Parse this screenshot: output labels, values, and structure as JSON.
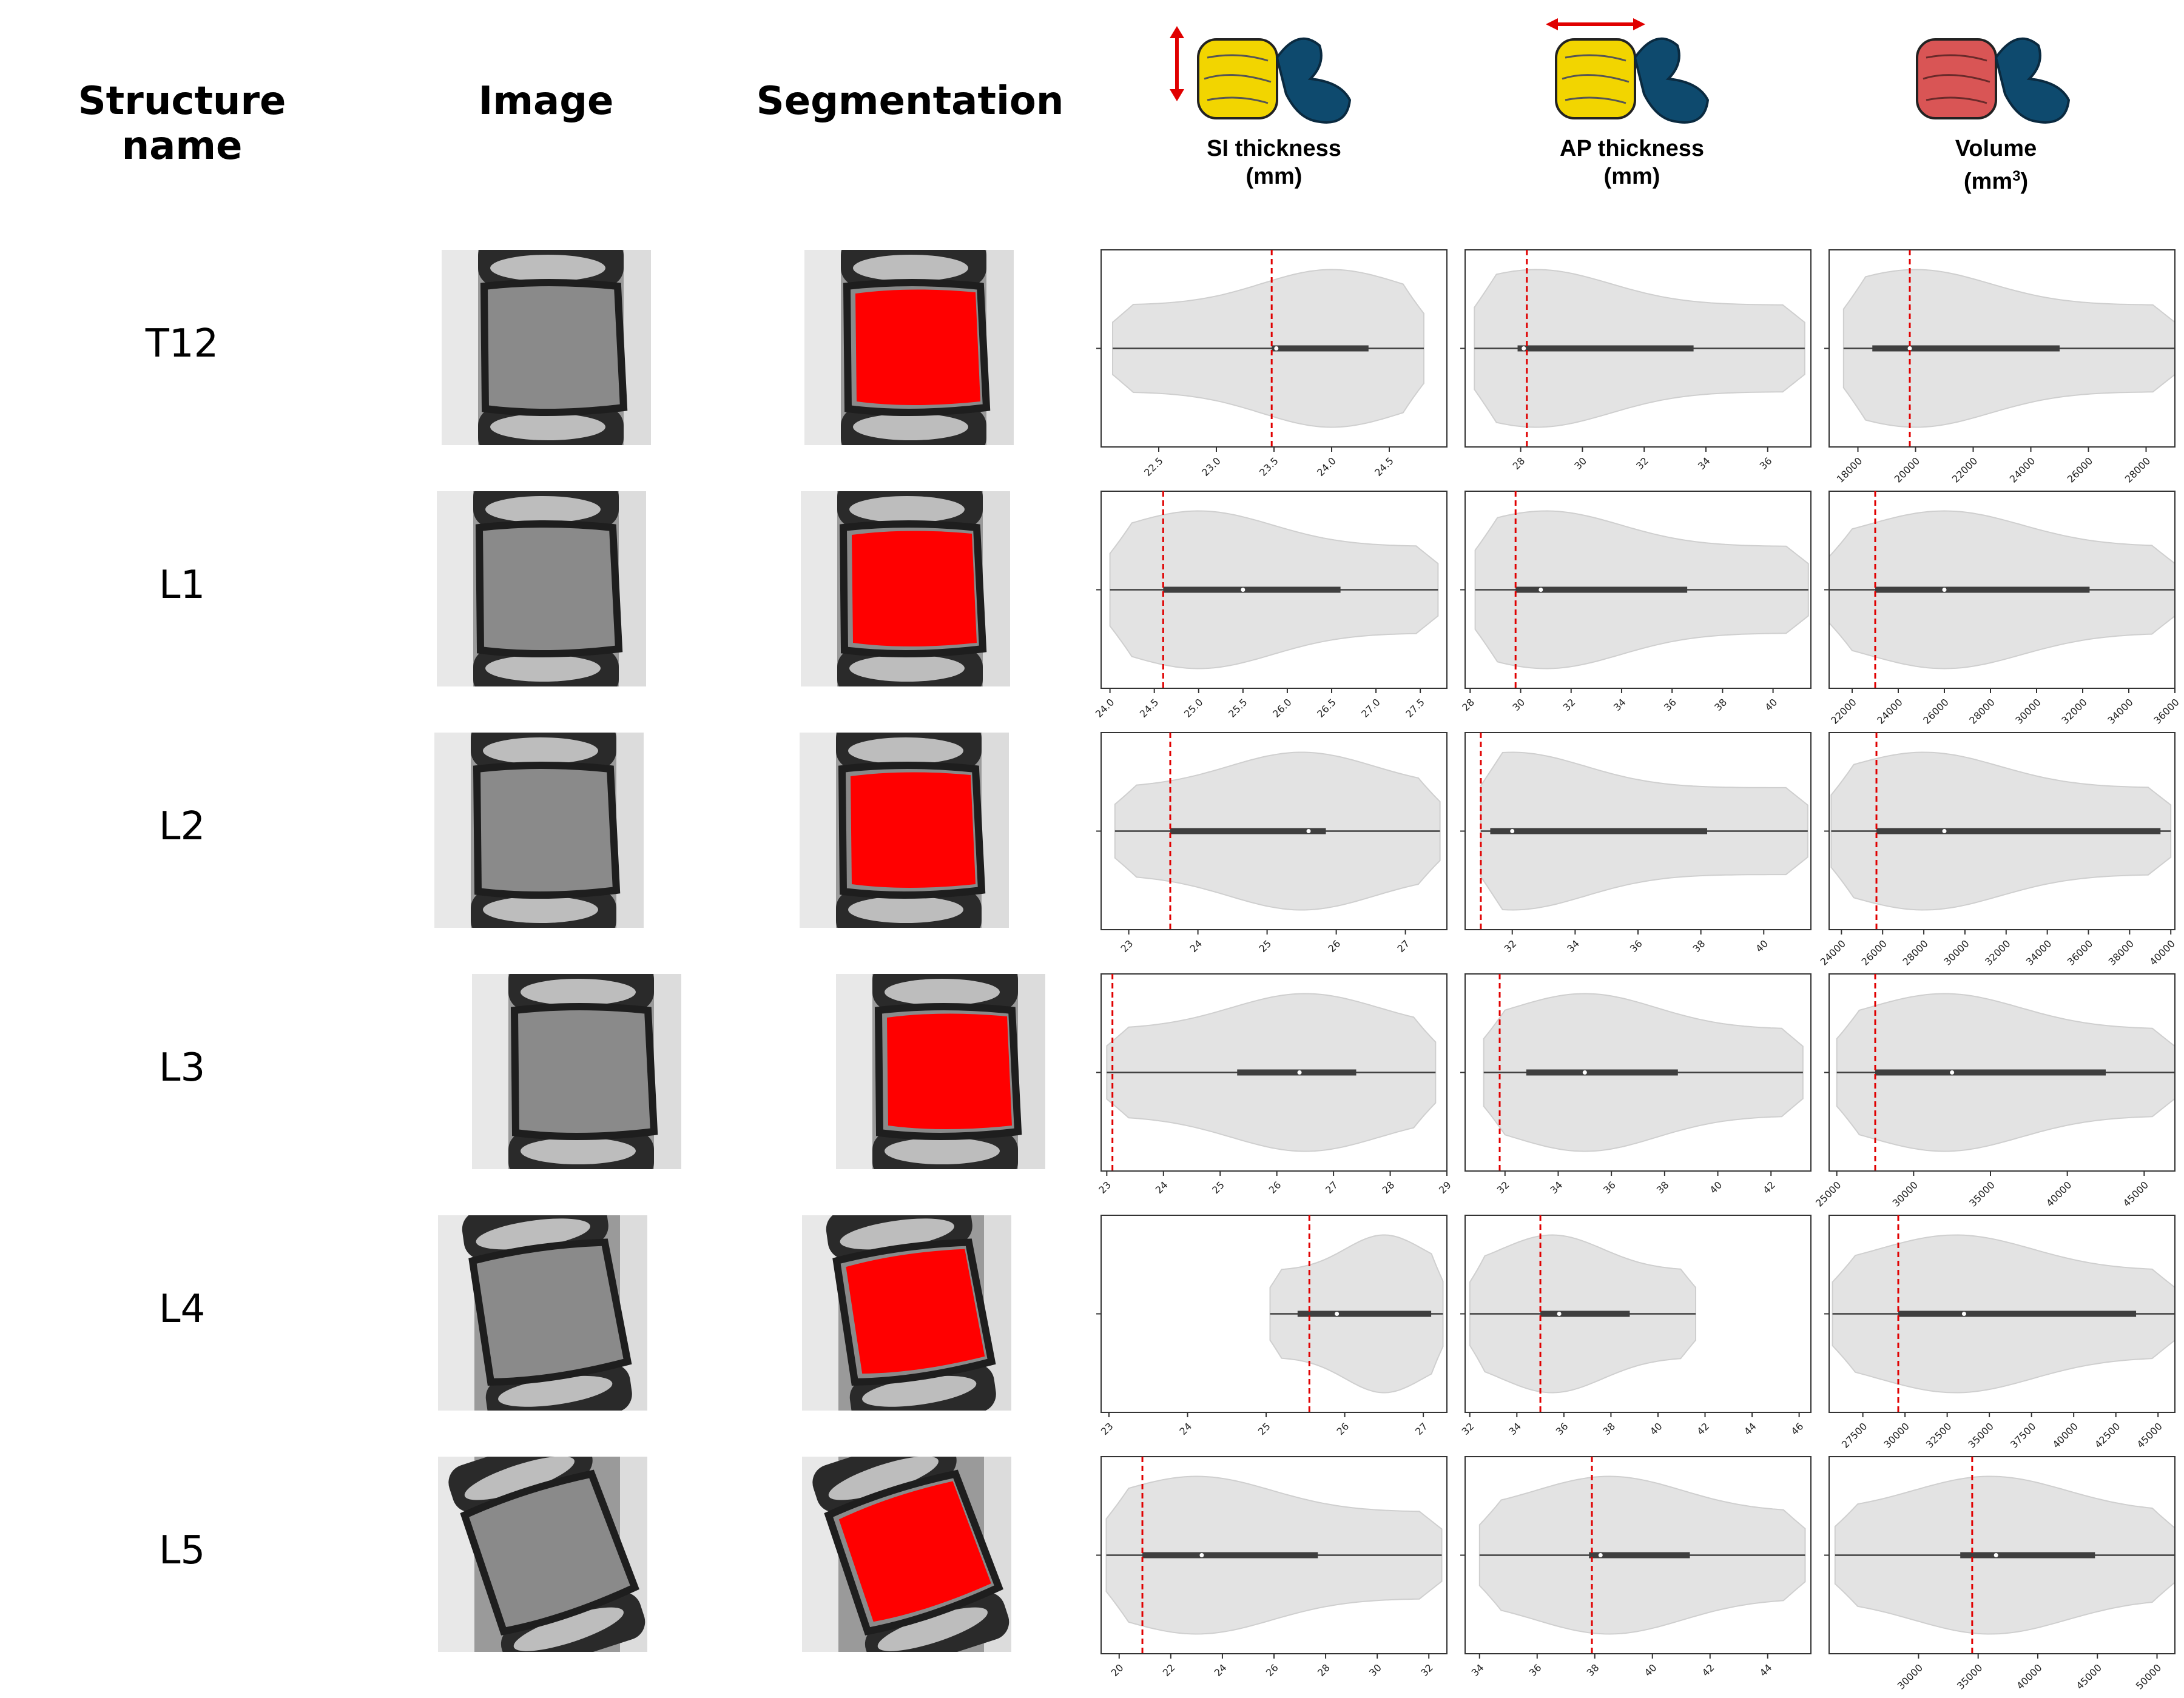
{
  "headers": {
    "structure": "Structure name",
    "image": "Image",
    "segmentation": "Segmentation",
    "metrics": [
      {
        "line1": "SI thickness",
        "line2": "(mm)"
      },
      {
        "line1": "AP thickness",
        "line2": "(mm)"
      },
      {
        "line1": "Volume",
        "line2": "(mm",
        "sup": "3",
        "close": ")"
      }
    ]
  },
  "colors": {
    "violin_fill": "#e3e3e3",
    "violin_edge": "#cfcfcf",
    "box": "#3f3f3f",
    "marker": "#e00000",
    "segmentation": "#ff0000",
    "vertebra_yellow": "#f2d500",
    "vertebra_red": "#d95555",
    "disc_blue": "#0e4a6e"
  },
  "rows": [
    {
      "name": "T12"
    },
    {
      "name": "L1"
    },
    {
      "name": "L2"
    },
    {
      "name": "L3"
    },
    {
      "name": "L4"
    },
    {
      "name": "L5"
    }
  ],
  "chart_data": [
    {
      "type": "violin",
      "structure": "T12",
      "metric": "SI thickness (mm)",
      "xlim": [
        22.0,
        25.0
      ],
      "ticks": [
        "22.5",
        "23.0",
        "23.5",
        "24.0",
        "24.5"
      ],
      "tick_values": [
        22.5,
        23.0,
        23.5,
        24.0,
        24.5
      ],
      "whisker": [
        22.1,
        24.8
      ],
      "box": [
        23.48,
        24.32
      ],
      "median": 23.52,
      "marker": 23.48,
      "violin_peak": 24.0
    },
    {
      "type": "violin",
      "structure": "T12",
      "metric": "AP thickness (mm)",
      "xlim": [
        26.2,
        37.4
      ],
      "ticks": [
        "28",
        "30",
        "32",
        "34",
        "36"
      ],
      "tick_values": [
        28,
        30,
        32,
        34,
        36
      ],
      "whisker": [
        26.5,
        37.2
      ],
      "box": [
        27.9,
        33.6
      ],
      "median": 28.1,
      "marker": 28.2,
      "violin_peak": 28.5
    },
    {
      "type": "violin",
      "structure": "T12",
      "metric": "Volume (mm3)",
      "xlim": [
        17000,
        29000
      ],
      "ticks": [
        "18000",
        "20000",
        "22000",
        "24000",
        "26000",
        "28000"
      ],
      "tick_values": [
        18000,
        20000,
        22000,
        24000,
        26000,
        28000
      ],
      "whisker": [
        17500,
        29000
      ],
      "box": [
        18500,
        25000
      ],
      "median": 19800,
      "marker": 19800,
      "violin_peak": 20000
    },
    {
      "type": "violin",
      "structure": "L1",
      "metric": "SI thickness (mm)",
      "xlim": [
        23.9,
        27.8
      ],
      "ticks": [
        "24.0",
        "24.5",
        "25.0",
        "25.5",
        "26.0",
        "26.5",
        "27.0",
        "27.5"
      ],
      "tick_values": [
        24.0,
        24.5,
        25.0,
        25.5,
        26.0,
        26.5,
        27.0,
        27.5
      ],
      "whisker": [
        24.0,
        27.7
      ],
      "box": [
        24.6,
        26.6
      ],
      "median": 25.5,
      "marker": 24.6,
      "violin_peak": 25.0
    },
    {
      "type": "violin",
      "structure": "L1",
      "metric": "AP thickness (mm)",
      "xlim": [
        27.8,
        41.5
      ],
      "ticks": [
        "28",
        "30",
        "32",
        "34",
        "36",
        "38",
        "40"
      ],
      "tick_values": [
        28,
        30,
        32,
        34,
        36,
        38,
        40
      ],
      "whisker": [
        28.2,
        41.4
      ],
      "box": [
        29.8,
        36.6
      ],
      "median": 30.8,
      "marker": 29.8,
      "violin_peak": 31.0
    },
    {
      "type": "violin",
      "structure": "L1",
      "metric": "Volume (mm3)",
      "xlim": [
        21000,
        36000
      ],
      "ticks": [
        "22000",
        "24000",
        "26000",
        "28000",
        "30000",
        "32000",
        "34000",
        "36000"
      ],
      "tick_values": [
        22000,
        24000,
        26000,
        28000,
        30000,
        32000,
        34000,
        36000
      ],
      "whisker": [
        21000,
        36000
      ],
      "box": [
        23000,
        32300
      ],
      "median": 26000,
      "marker": 23000,
      "violin_peak": 26000
    },
    {
      "type": "violin",
      "structure": "L2",
      "metric": "SI thickness (mm)",
      "xlim": [
        22.6,
        27.6
      ],
      "ticks": [
        "23",
        "24",
        "25",
        "26",
        "27"
      ],
      "tick_values": [
        23,
        24,
        25,
        26,
        27
      ],
      "whisker": [
        22.8,
        27.5
      ],
      "box": [
        23.6,
        25.85
      ],
      "median": 25.6,
      "marker": 23.6,
      "violin_peak": 25.5
    },
    {
      "type": "violin",
      "structure": "L2",
      "metric": "AP thickness (mm)",
      "xlim": [
        30.5,
        41.5
      ],
      "ticks": [
        "32",
        "34",
        "36",
        "38",
        "40"
      ],
      "tick_values": [
        32,
        34,
        36,
        38,
        40
      ],
      "whisker": [
        31.0,
        41.4
      ],
      "box": [
        31.3,
        38.2
      ],
      "median": 32.0,
      "marker": 31.0,
      "violin_peak": 32.0
    },
    {
      "type": "violin",
      "structure": "L2",
      "metric": "Volume (mm3)",
      "xlim": [
        23400,
        40200
      ],
      "ticks": [
        "24000",
        "26000",
        "28000",
        "30000",
        "32000",
        "34000",
        "36000",
        "38000",
        "40000"
      ],
      "tick_values": [
        24000,
        26000,
        28000,
        30000,
        32000,
        34000,
        36000,
        38000,
        40000
      ],
      "whisker": [
        23500,
        40000
      ],
      "box": [
        25700,
        39500
      ],
      "median": 29000,
      "marker": 25700,
      "violin_peak": 28000
    },
    {
      "type": "violin",
      "structure": "L3",
      "metric": "SI thickness (mm)",
      "xlim": [
        22.9,
        29.0
      ],
      "ticks": [
        "23",
        "24",
        "25",
        "26",
        "27",
        "28",
        "29"
      ],
      "tick_values": [
        23,
        24,
        25,
        26,
        27,
        28,
        29
      ],
      "whisker": [
        23.0,
        28.8
      ],
      "box": [
        25.3,
        27.4
      ],
      "median": 26.4,
      "marker": 23.1,
      "violin_peak": 26.5
    },
    {
      "type": "violin",
      "structure": "L3",
      "metric": "AP thickness (mm)",
      "xlim": [
        30.5,
        43.5
      ],
      "ticks": [
        "32",
        "34",
        "36",
        "38",
        "40",
        "42"
      ],
      "tick_values": [
        32,
        34,
        36,
        38,
        40,
        42
      ],
      "whisker": [
        31.2,
        43.2
      ],
      "box": [
        32.8,
        38.5
      ],
      "median": 35.0,
      "marker": 31.8,
      "violin_peak": 35.0
    },
    {
      "type": "violin",
      "structure": "L3",
      "metric": "Volume (mm3)",
      "xlim": [
        24500,
        47000
      ],
      "ticks": [
        "25000",
        "30000",
        "35000",
        "40000",
        "45000"
      ],
      "tick_values": [
        25000,
        30000,
        35000,
        40000,
        45000
      ],
      "whisker": [
        25000,
        47000
      ],
      "box": [
        27500,
        42500
      ],
      "median": 32500,
      "marker": 27500,
      "violin_peak": 32000
    },
    {
      "type": "violin",
      "structure": "L4",
      "metric": "SI thickness (mm)",
      "xlim": [
        22.9,
        27.3
      ],
      "ticks": [
        "23",
        "24",
        "25",
        "26",
        "27"
      ],
      "tick_values": [
        23,
        24,
        25,
        26,
        27
      ],
      "whisker": [
        25.05,
        27.25
      ],
      "box": [
        25.4,
        27.1
      ],
      "median": 25.9,
      "marker": 25.55,
      "violin_peak": 26.5
    },
    {
      "type": "violin",
      "structure": "L4",
      "metric": "AP thickness (mm)",
      "xlim": [
        31.8,
        46.5
      ],
      "ticks": [
        "32",
        "34",
        "36",
        "38",
        "40",
        "42",
        "44",
        "46"
      ],
      "tick_values": [
        32,
        34,
        36,
        38,
        40,
        42,
        44,
        46
      ],
      "whisker": [
        32.0,
        41.6
      ],
      "box": [
        35.0,
        38.8
      ],
      "median": 35.8,
      "marker": 35.0,
      "violin_peak": 35.5
    },
    {
      "type": "violin",
      "structure": "L4",
      "metric": "Volume (mm3)",
      "xlim": [
        25500,
        46000
      ],
      "ticks": [
        "27500",
        "30000",
        "32500",
        "35000",
        "37500",
        "40000",
        "42500",
        "45000"
      ],
      "tick_values": [
        27500,
        30000,
        32500,
        35000,
        37500,
        40000,
        42500,
        45000
      ],
      "whisker": [
        25700,
        46000
      ],
      "box": [
        29600,
        43700
      ],
      "median": 33500,
      "marker": 29600,
      "violin_peak": 33000
    },
    {
      "type": "violin",
      "structure": "L5",
      "metric": "SI thickness (mm)",
      "xlim": [
        19.3,
        32.7
      ],
      "ticks": [
        "20",
        "22",
        "24",
        "26",
        "28",
        "30",
        "32"
      ],
      "tick_values": [
        20,
        22,
        24,
        26,
        28,
        30,
        32
      ],
      "whisker": [
        19.5,
        32.5
      ],
      "box": [
        20.9,
        27.7
      ],
      "median": 23.2,
      "marker": 20.9,
      "violin_peak": 23.0
    },
    {
      "type": "violin",
      "structure": "L5",
      "metric": "AP thickness (mm)",
      "xlim": [
        33.5,
        45.5
      ],
      "ticks": [
        "34",
        "36",
        "38",
        "40",
        "42",
        "44"
      ],
      "tick_values": [
        34,
        36,
        38,
        40,
        42,
        44
      ],
      "whisker": [
        34.0,
        45.3
      ],
      "box": [
        37.8,
        41.3
      ],
      "median": 38.2,
      "marker": 37.9,
      "violin_peak": 38.5
    },
    {
      "type": "violin",
      "structure": "L5",
      "metric": "Volume (mm3)",
      "xlim": [
        22500,
        51500
      ],
      "ticks": [
        "30000",
        "35000",
        "40000",
        "45000",
        "50000"
      ],
      "tick_values": [
        30000,
        35000,
        40000,
        45000,
        50000
      ],
      "whisker": [
        23000,
        51500
      ],
      "box": [
        33500,
        44800
      ],
      "median": 36500,
      "marker": 34500,
      "violin_peak": 36000
    }
  ]
}
